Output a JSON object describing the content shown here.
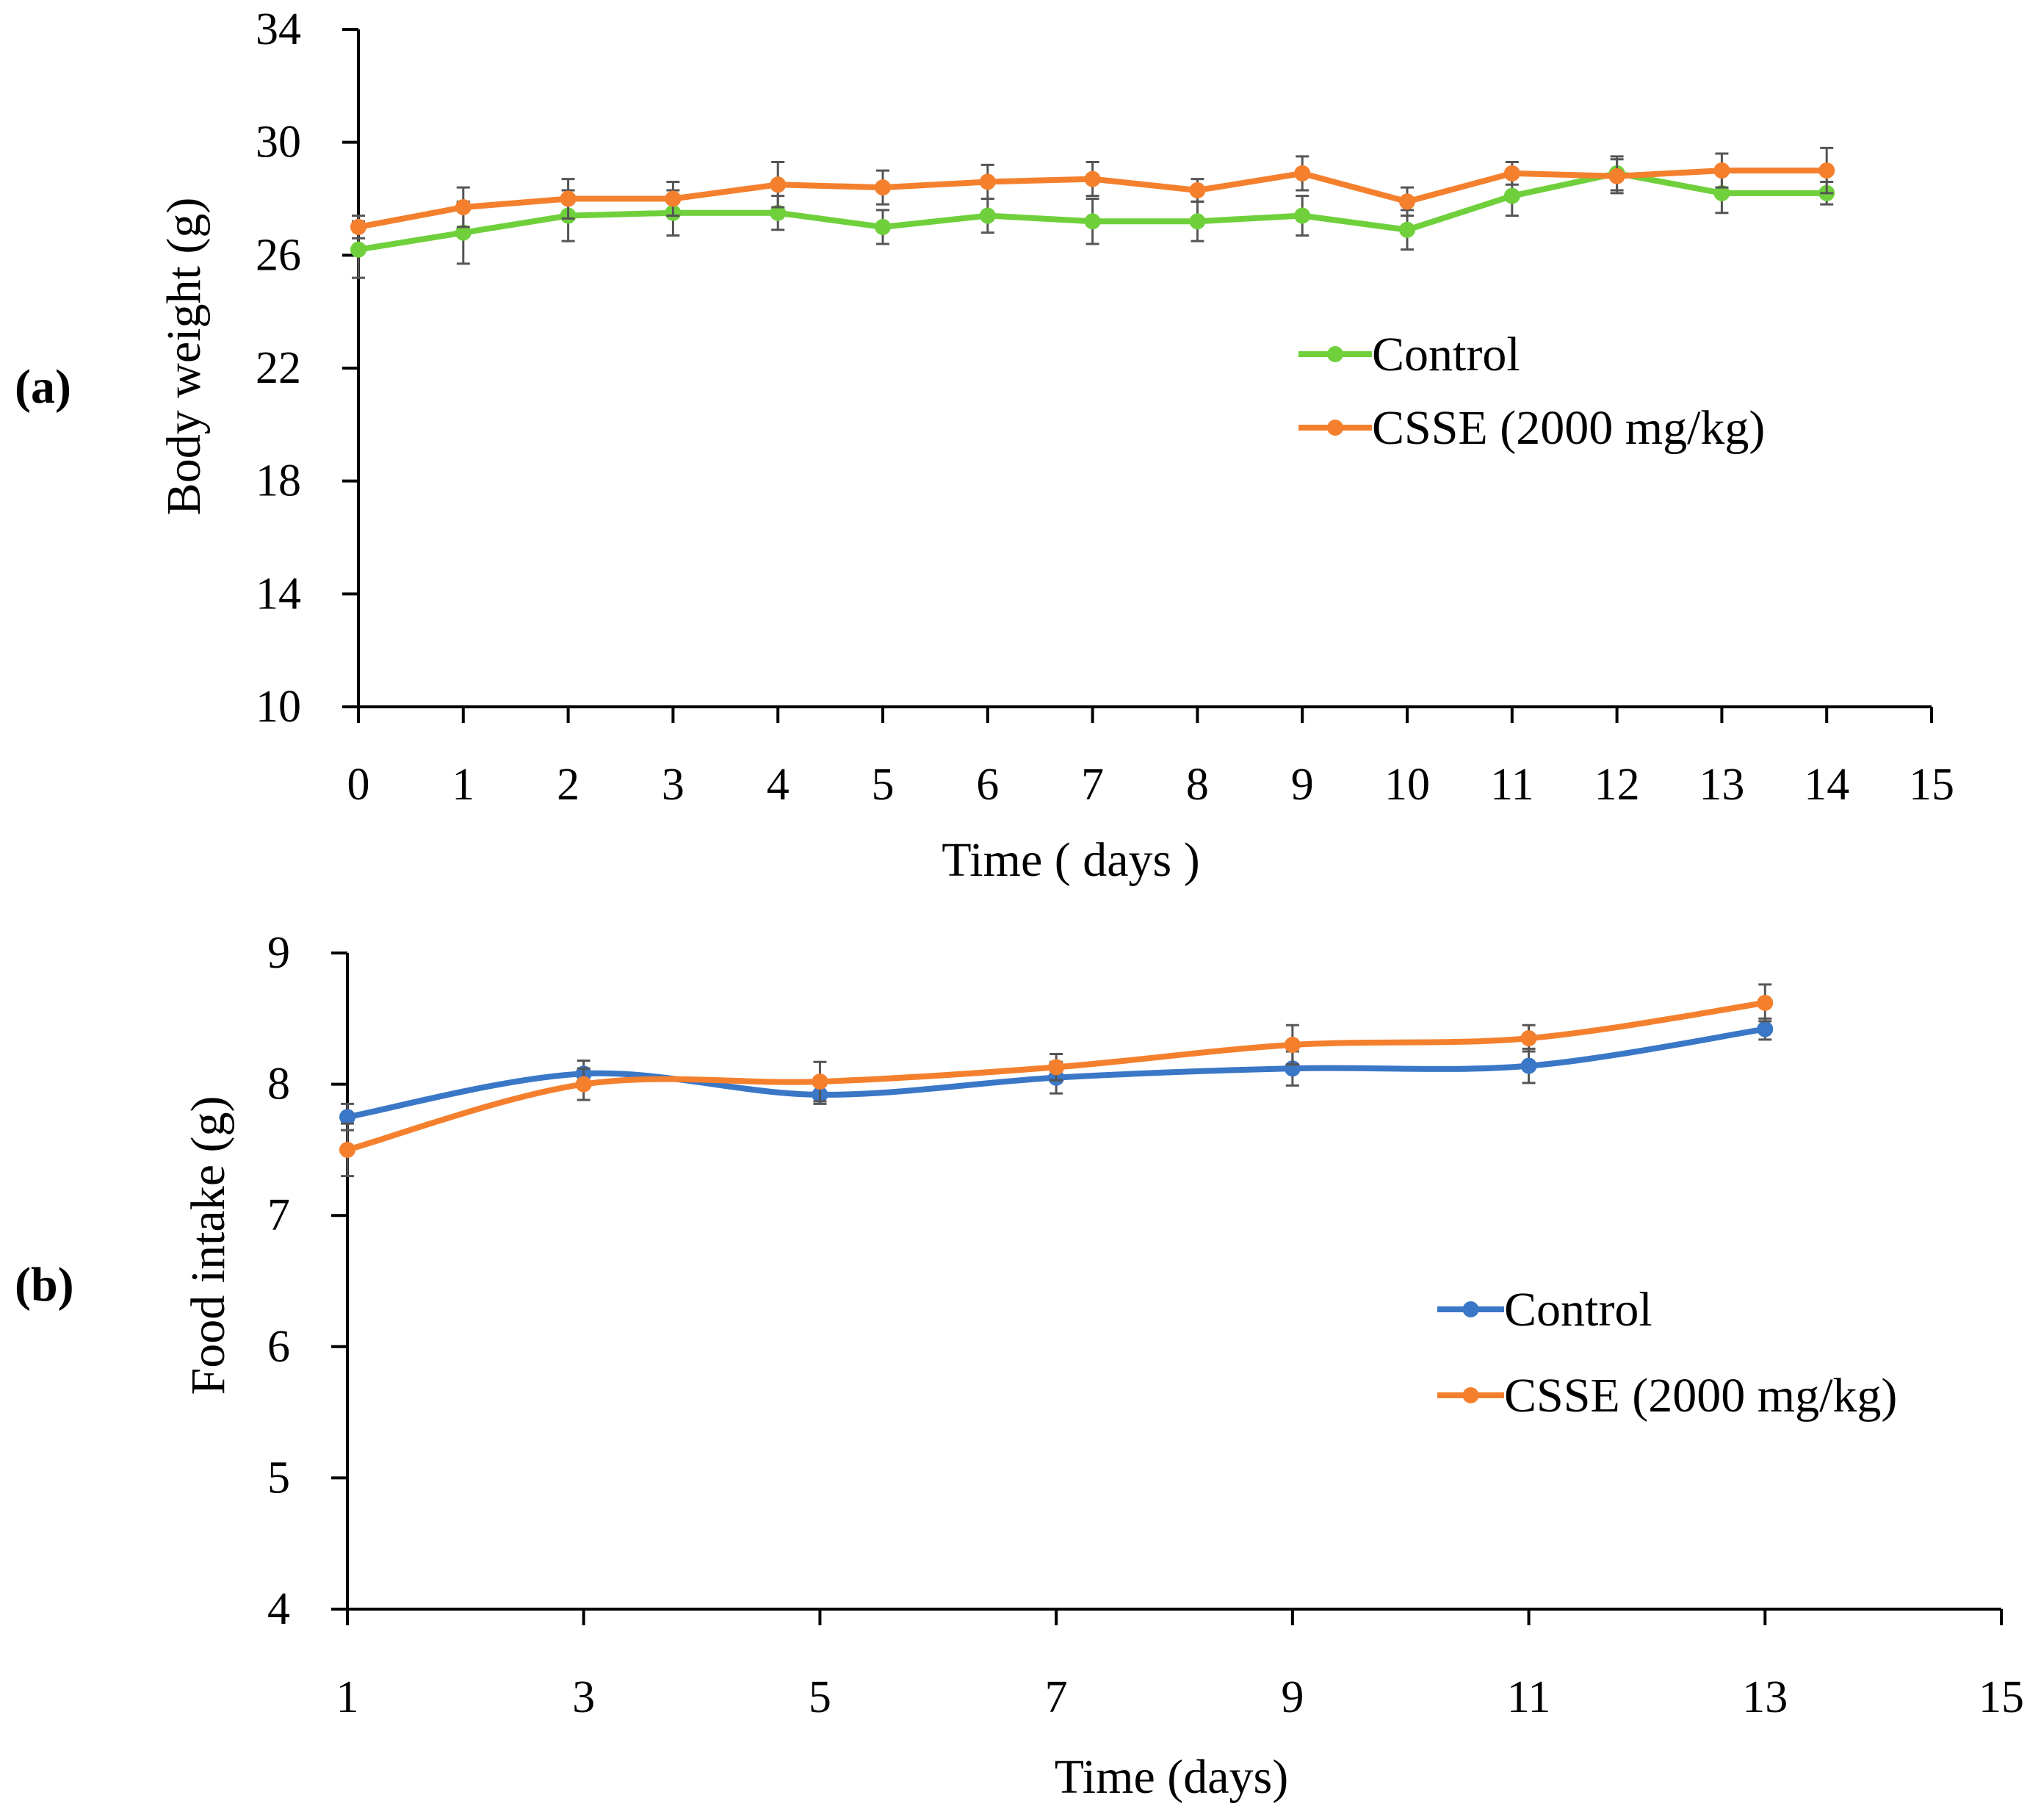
{
  "chart_data": [
    {
      "panel_label": "(a)",
      "type": "line",
      "smooth": false,
      "xlabel": "Time ( days )",
      "ylabel": "Body weight (g)",
      "xlim": [
        0,
        15
      ],
      "ylim": [
        10,
        34
      ],
      "xticks": [
        0,
        1,
        2,
        3,
        4,
        5,
        6,
        7,
        8,
        9,
        10,
        11,
        12,
        13,
        14,
        15
      ],
      "yticks": [
        10,
        14,
        18,
        22,
        26,
        30,
        34
      ],
      "legend_position": "center-right",
      "series": [
        {
          "name": "Control",
          "color": "#6fd03c",
          "x": [
            0,
            1,
            2,
            3,
            4,
            5,
            6,
            7,
            8,
            9,
            10,
            11,
            12,
            13,
            14
          ],
          "values": [
            26.2,
            26.8,
            27.4,
            27.5,
            27.5,
            27.0,
            27.4,
            27.2,
            27.2,
            27.4,
            26.9,
            28.1,
            28.9,
            28.2,
            28.2
          ],
          "errors": [
            1.0,
            1.1,
            0.9,
            0.8,
            0.6,
            0.6,
            0.6,
            0.8,
            0.7,
            0.7,
            0.7,
            0.7,
            0.6,
            0.7,
            0.4
          ]
        },
        {
          "name": "CSSE (2000 mg/kg)",
          "color": "#f4802e",
          "x": [
            0,
            1,
            2,
            3,
            4,
            5,
            6,
            7,
            8,
            9,
            10,
            11,
            12,
            13,
            14
          ],
          "values": [
            27.0,
            27.7,
            28.0,
            28.0,
            28.5,
            28.4,
            28.6,
            28.7,
            28.3,
            28.9,
            27.9,
            28.9,
            28.8,
            29.0,
            29.0
          ],
          "errors": [
            0.4,
            0.7,
            0.7,
            0.6,
            0.8,
            0.6,
            0.6,
            0.6,
            0.4,
            0.6,
            0.5,
            0.4,
            0.6,
            0.6,
            0.8
          ]
        }
      ]
    },
    {
      "panel_label": "(b)",
      "type": "line",
      "smooth": true,
      "xlabel": "Time (days)",
      "ylabel": "Food intake (g)",
      "xlim": [
        1,
        15
      ],
      "ylim": [
        4,
        9
      ],
      "xticks": [
        1,
        3,
        5,
        7,
        9,
        11,
        13,
        15
      ],
      "yticks": [
        4,
        5,
        6,
        7,
        8,
        9
      ],
      "legend_position": "center-right",
      "series": [
        {
          "name": "Control",
          "color": "#3a77c6",
          "x": [
            1,
            3,
            5,
            7,
            9,
            11,
            13
          ],
          "values": [
            7.75,
            8.08,
            7.92,
            8.05,
            8.12,
            8.14,
            8.42
          ],
          "errors": [
            0.1,
            0.1,
            0.07,
            0.12,
            0.13,
            0.13,
            0.08
          ]
        },
        {
          "name": "CSSE (2000 mg/kg)",
          "color": "#f4802e",
          "x": [
            1,
            3,
            5,
            7,
            9,
            11,
            13
          ],
          "values": [
            7.5,
            8.0,
            8.02,
            8.13,
            8.3,
            8.35,
            8.62
          ],
          "errors": [
            0.2,
            0.12,
            0.15,
            0.1,
            0.15,
            0.1,
            0.14
          ]
        }
      ]
    }
  ]
}
